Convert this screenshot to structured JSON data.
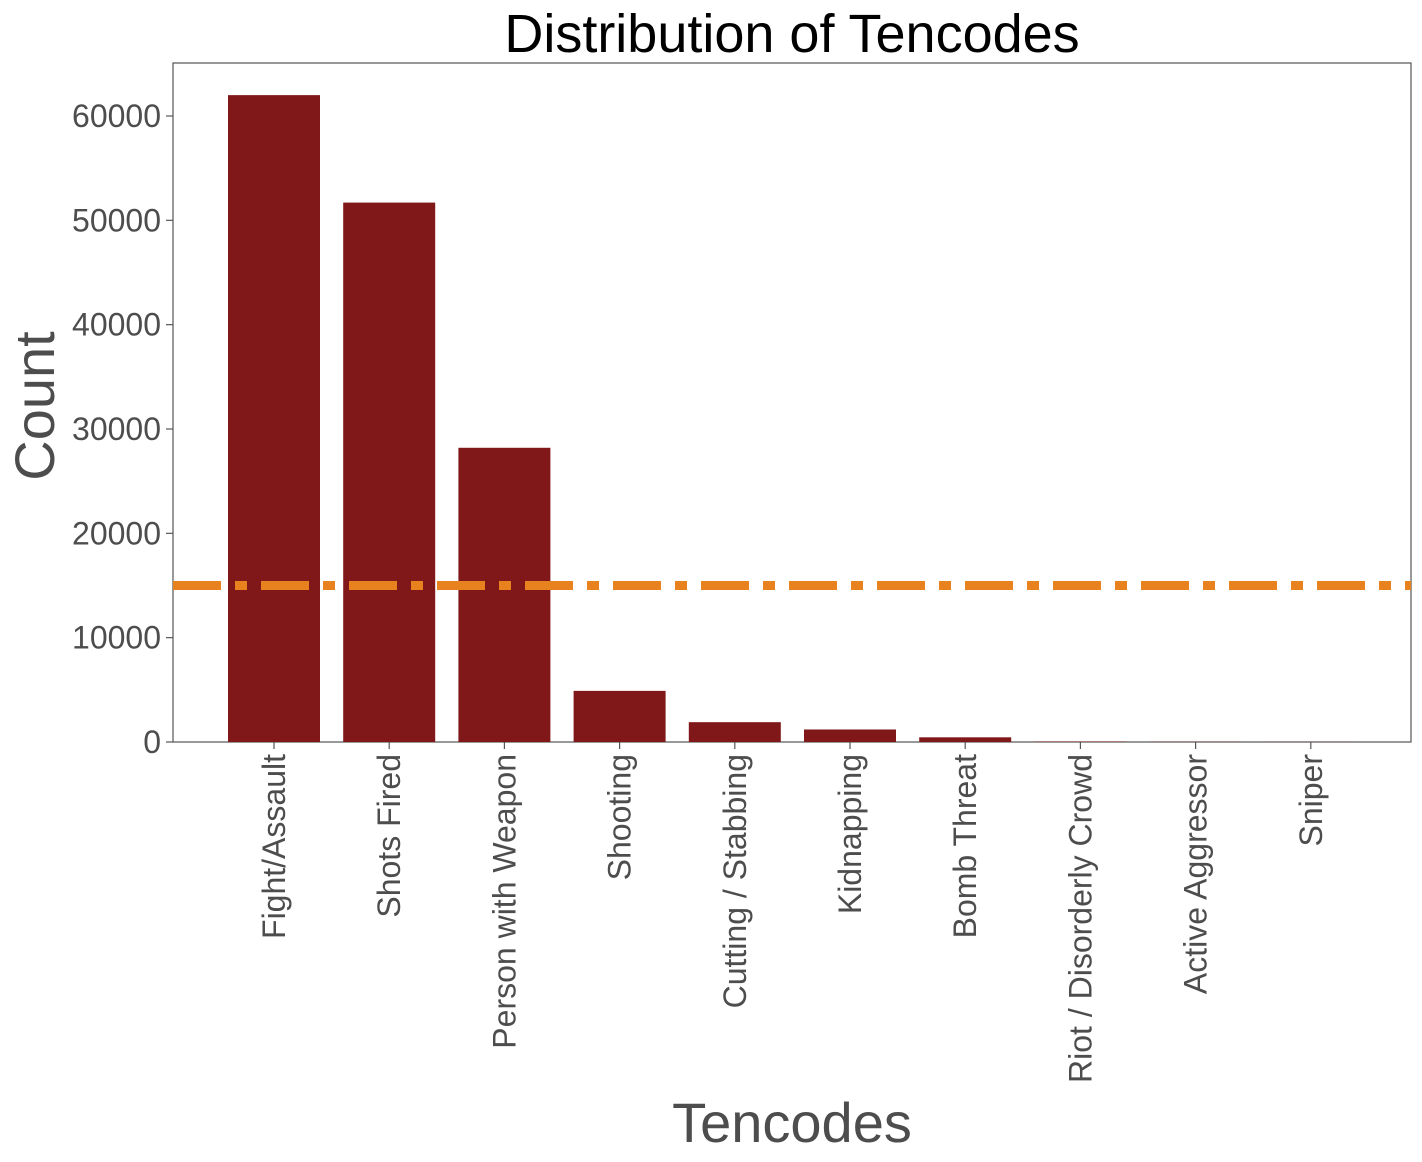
{
  "chart_data": {
    "type": "bar",
    "title": "Distribution of Tencodes",
    "xlabel": "Tencodes",
    "ylabel": "Count",
    "categories": [
      "Fight/Assault",
      "Shots Fired",
      "Person with Weapon",
      "Shooting",
      "Cutting / Stabbing",
      "Kidnapping",
      "Bomb Threat",
      "Riot / Disorderly Crowd",
      "Active Aggressor",
      "Sniper"
    ],
    "values": [
      62000,
      51700,
      28200,
      4900,
      1900,
      1200,
      450,
      40,
      20,
      10
    ],
    "ylim": [
      0,
      65000
    ],
    "yticks": [
      0,
      10000,
      20000,
      30000,
      40000,
      50000,
      60000
    ],
    "reference_line": {
      "y": 15000,
      "style": "dash-dot",
      "color": "#e8821e"
    },
    "bar_color": "#80181a",
    "grid": false,
    "legend": "none"
  }
}
